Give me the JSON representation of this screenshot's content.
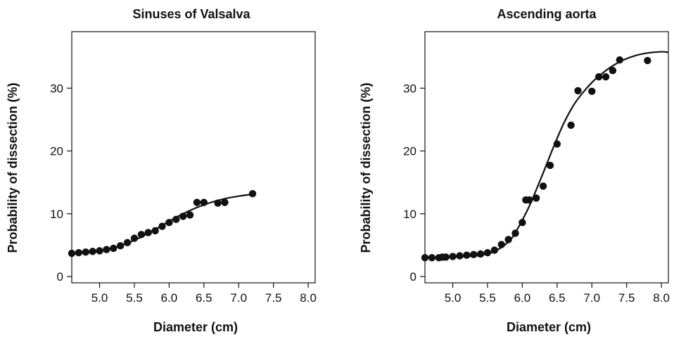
{
  "chart_data": [
    {
      "type": "scatter",
      "title": "Sinuses of Valsalva",
      "xlabel": "Diameter (cm)",
      "ylabel": "Probability of dissection (%)",
      "xlim": [
        4.6,
        8.1
      ],
      "ylim": [
        -1,
        39
      ],
      "x_ticks": [
        "5.0",
        "5.5",
        "6.0",
        "6.5",
        "7.0",
        "7.5",
        "8.0"
      ],
      "y_ticks": [
        "0",
        "10",
        "20",
        "30"
      ],
      "grid": false,
      "series": [
        {
          "kind": "points",
          "x": [
            4.6,
            4.7,
            4.8,
            4.9,
            5.0,
            5.1,
            5.2,
            5.3,
            5.4,
            5.5,
            5.6,
            5.7,
            5.8,
            5.9,
            6.0,
            6.1,
            6.2,
            6.3,
            6.4,
            6.5,
            6.7,
            6.8,
            7.2
          ],
          "y": [
            3.7,
            3.8,
            3.9,
            4.0,
            4.1,
            4.3,
            4.5,
            4.9,
            5.4,
            6.1,
            6.7,
            7.0,
            7.3,
            8.0,
            8.6,
            9.1,
            9.6,
            9.8,
            11.8,
            11.8,
            11.7,
            11.8,
            13.2
          ]
        },
        {
          "kind": "fit-curve",
          "x": [
            4.6,
            4.8,
            5.0,
            5.2,
            5.4,
            5.6,
            5.8,
            6.0,
            6.2,
            6.4,
            6.6,
            6.8,
            7.0,
            7.2
          ],
          "y": [
            3.6,
            3.8,
            4.0,
            4.5,
            5.3,
            6.3,
            7.5,
            8.8,
            10.0,
            11.0,
            11.8,
            12.4,
            12.8,
            13.1
          ]
        }
      ]
    },
    {
      "type": "scatter",
      "title": "Ascending aorta",
      "xlabel": "Diameter (cm)",
      "ylabel": "Probability of dissection (%)",
      "xlim": [
        4.6,
        8.1
      ],
      "ylim": [
        -1,
        39
      ],
      "x_ticks": [
        "5.0",
        "5.5",
        "6.0",
        "6.5",
        "7.0",
        "7.5",
        "8.0"
      ],
      "y_ticks": [
        "0",
        "10",
        "20",
        "30"
      ],
      "grid": false,
      "series": [
        {
          "kind": "points",
          "x": [
            4.6,
            4.7,
            4.8,
            4.85,
            4.9,
            5.0,
            5.1,
            5.2,
            5.3,
            5.4,
            5.5,
            5.6,
            5.7,
            5.8,
            5.9,
            6.0,
            6.05,
            6.1,
            6.2,
            6.3,
            6.4,
            6.5,
            6.7,
            6.8,
            7.0,
            7.1,
            7.2,
            7.3,
            7.4,
            7.8
          ],
          "y": [
            3.0,
            3.0,
            3.0,
            3.1,
            3.1,
            3.2,
            3.3,
            3.4,
            3.5,
            3.6,
            3.8,
            4.2,
            5.1,
            5.9,
            6.9,
            8.6,
            12.2,
            12.2,
            12.5,
            14.4,
            17.7,
            21.1,
            24.1,
            29.6,
            29.5,
            31.8,
            31.8,
            32.8,
            34.5,
            34.4
          ]
        },
        {
          "kind": "fit-curve",
          "x": [
            4.6,
            4.8,
            5.0,
            5.2,
            5.4,
            5.6,
            5.8,
            5.9,
            6.0,
            6.1,
            6.2,
            6.3,
            6.4,
            6.5,
            6.6,
            6.7,
            6.8,
            7.0,
            7.2,
            7.4,
            7.6,
            7.8,
            8.0,
            8.1
          ],
          "y": [
            3.0,
            3.0,
            3.1,
            3.2,
            3.4,
            4.0,
            5.5,
            7.0,
            9.0,
            11.2,
            13.8,
            16.5,
            19.3,
            22.0,
            24.5,
            26.6,
            28.3,
            30.9,
            32.8,
            34.2,
            35.1,
            35.6,
            35.8,
            35.7
          ]
        }
      ]
    }
  ]
}
